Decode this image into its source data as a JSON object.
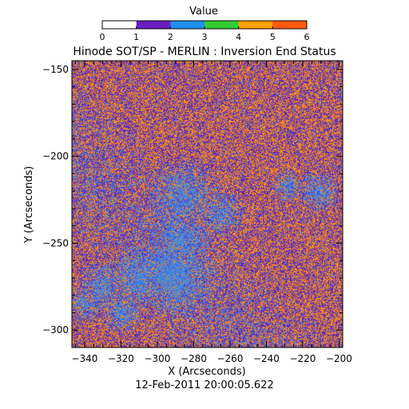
{
  "chart_data": {
    "type": "heatmap",
    "title": "Hinode SOT/SP - MERLIN : Inversion End Status",
    "subtitle": "12-Feb-2011 20:00:05.622",
    "xlabel": "X (Arcseconds)",
    "ylabel": "Y (Arcseconds)",
    "xlim": [
      -347,
      -198
    ],
    "ylim": [
      -310,
      -145
    ],
    "xticks": [
      -340,
      -320,
      -300,
      -280,
      -260,
      -240,
      -220,
      -200
    ],
    "xtick_labels": [
      "−340",
      "−320",
      "−300",
      "−280",
      "−260",
      "−240",
      "−220",
      "−200"
    ],
    "yticks": [
      -150,
      -200,
      -250,
      -300
    ],
    "ytick_labels": [
      "−150",
      "−200",
      "−250",
      "−300"
    ],
    "grid": false,
    "colorbar": {
      "label": "Value",
      "range": [
        0,
        6
      ],
      "tick_values": [
        0,
        1,
        2,
        3,
        4,
        5,
        6
      ],
      "tick_labels": [
        "0",
        "1",
        "2",
        "3",
        "4",
        "5",
        "6"
      ],
      "colors": [
        "#ffffff",
        "#6a1fbf",
        "#1f8ff0",
        "#33cc33",
        "#ffa000",
        "#ff5a10"
      ]
    },
    "value_colors": {
      "1": "#5e2bb5",
      "2": "#3a87e8",
      "4": "#ff8c1a"
    },
    "dominant_values": [
      1,
      2,
      4
    ],
    "background_mix": {
      "1": 0.47,
      "2": 0.06,
      "4": 0.47
    },
    "regions_high_value_2": [
      {
        "x": -285,
        "y": -223,
        "r": 14
      },
      {
        "x": -265,
        "y": -232,
        "r": 9
      },
      {
        "x": -287,
        "y": -248,
        "r": 12
      },
      {
        "x": -292,
        "y": -268,
        "r": 16
      },
      {
        "x": -310,
        "y": -270,
        "r": 12
      },
      {
        "x": -330,
        "y": -275,
        "r": 10
      },
      {
        "x": -340,
        "y": -285,
        "r": 7
      },
      {
        "x": -212,
        "y": -220,
        "r": 8
      },
      {
        "x": -228,
        "y": -217,
        "r": 6
      },
      {
        "x": -320,
        "y": -290,
        "r": 8
      }
    ]
  }
}
